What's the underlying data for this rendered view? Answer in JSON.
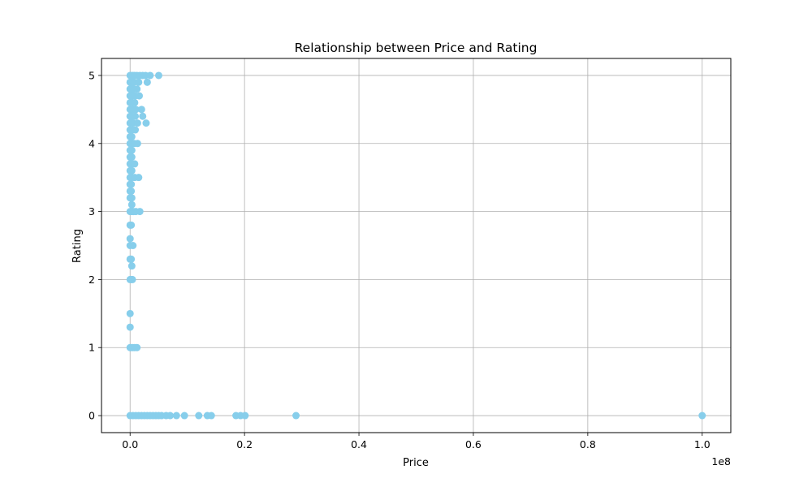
{
  "chart_data": {
    "type": "scatter",
    "title": "Relationship between Price and Rating",
    "xlabel": "Price",
    "ylabel": "Rating",
    "x_offset_label": "1e8",
    "xlim": [
      -5000000,
      105000000
    ],
    "ylim": [
      -0.25,
      5.25
    ],
    "grid": true,
    "point_color": "#87CEEB",
    "x_ticks": [
      0,
      20000000,
      40000000,
      60000000,
      80000000,
      100000000
    ],
    "x_tick_labels": [
      "0.0",
      "0.2",
      "0.4",
      "0.6",
      "0.8",
      "1.0"
    ],
    "y_ticks": [
      0,
      1,
      2,
      3,
      4,
      5
    ],
    "y_tick_labels": [
      "0",
      "1",
      "2",
      "3",
      "4",
      "5"
    ],
    "series": [
      {
        "points": [
          [
            0,
            5
          ],
          [
            200000,
            5
          ],
          [
            500000,
            5
          ],
          [
            800000,
            5
          ],
          [
            1200000,
            5
          ],
          [
            1700000,
            5
          ],
          [
            2200000,
            5
          ],
          [
            2700000,
            5
          ],
          [
            3500000,
            5
          ],
          [
            5000000,
            5
          ],
          [
            0,
            4.9
          ],
          [
            300000,
            4.9
          ],
          [
            700000,
            4.9
          ],
          [
            1500000,
            4.9
          ],
          [
            3000000,
            4.9
          ],
          [
            0,
            4.8
          ],
          [
            300000,
            4.8
          ],
          [
            600000,
            4.8
          ],
          [
            1200000,
            4.8
          ],
          [
            0,
            4.7
          ],
          [
            400000,
            4.7
          ],
          [
            900000,
            4.7
          ],
          [
            1600000,
            4.7
          ],
          [
            0,
            4.6
          ],
          [
            300000,
            4.6
          ],
          [
            800000,
            4.6
          ],
          [
            0,
            4.5
          ],
          [
            500000,
            4.5
          ],
          [
            1000000,
            4.5
          ],
          [
            2000000,
            4.5
          ],
          [
            0,
            4.4
          ],
          [
            400000,
            4.4
          ],
          [
            900000,
            4.4
          ],
          [
            2200000,
            4.4
          ],
          [
            0,
            4.3
          ],
          [
            500000,
            4.3
          ],
          [
            1300000,
            4.3
          ],
          [
            2800000,
            4.3
          ],
          [
            0,
            4.2
          ],
          [
            300000,
            4.2
          ],
          [
            900000,
            4.2
          ],
          [
            0,
            4.1
          ],
          [
            300000,
            4.1
          ],
          [
            0,
            4
          ],
          [
            300000,
            4
          ],
          [
            700000,
            4
          ],
          [
            1300000,
            4
          ],
          [
            0,
            3.9
          ],
          [
            300000,
            3.9
          ],
          [
            0,
            3.8
          ],
          [
            300000,
            3.8
          ],
          [
            0,
            3.7
          ],
          [
            300000,
            3.7
          ],
          [
            800000,
            3.7
          ],
          [
            0,
            3.6
          ],
          [
            300000,
            3.6
          ],
          [
            0,
            3.5
          ],
          [
            300000,
            3.5
          ],
          [
            800000,
            3.5
          ],
          [
            1500000,
            3.5
          ],
          [
            0,
            3.4
          ],
          [
            200000,
            3.4
          ],
          [
            0,
            3.3
          ],
          [
            200000,
            3.3
          ],
          [
            0,
            3.2
          ],
          [
            300000,
            3.2
          ],
          [
            300000,
            3.1
          ],
          [
            0,
            3
          ],
          [
            300000,
            3
          ],
          [
            600000,
            3
          ],
          [
            1000000,
            3
          ],
          [
            1700000,
            3
          ],
          [
            0,
            2.8
          ],
          [
            200000,
            2.8
          ],
          [
            0,
            2.6
          ],
          [
            0,
            2.5
          ],
          [
            500000,
            2.5
          ],
          [
            0,
            2.3
          ],
          [
            200000,
            2.3
          ],
          [
            300000,
            2.2
          ],
          [
            0,
            2
          ],
          [
            200000,
            2
          ],
          [
            400000,
            2
          ],
          [
            0,
            1.5
          ],
          [
            0,
            1.3
          ],
          [
            0,
            1
          ],
          [
            200000,
            1
          ],
          [
            500000,
            1
          ],
          [
            800000,
            1
          ],
          [
            1200000,
            1
          ],
          [
            0,
            0
          ],
          [
            500000,
            0
          ],
          [
            1000000,
            0
          ],
          [
            1500000,
            0
          ],
          [
            2000000,
            0
          ],
          [
            2500000,
            0
          ],
          [
            3000000,
            0
          ],
          [
            3500000,
            0
          ],
          [
            4000000,
            0
          ],
          [
            4500000,
            0
          ],
          [
            5000000,
            0
          ],
          [
            5500000,
            0
          ],
          [
            6300000,
            0
          ],
          [
            7000000,
            0
          ],
          [
            8100000,
            0
          ],
          [
            9500000,
            0
          ],
          [
            12000000,
            0
          ],
          [
            13500000,
            0
          ],
          [
            14200000,
            0
          ],
          [
            18500000,
            0
          ],
          [
            19300000,
            0
          ],
          [
            20100000,
            0
          ],
          [
            29000000,
            0
          ],
          [
            100000000,
            0
          ]
        ]
      }
    ]
  }
}
